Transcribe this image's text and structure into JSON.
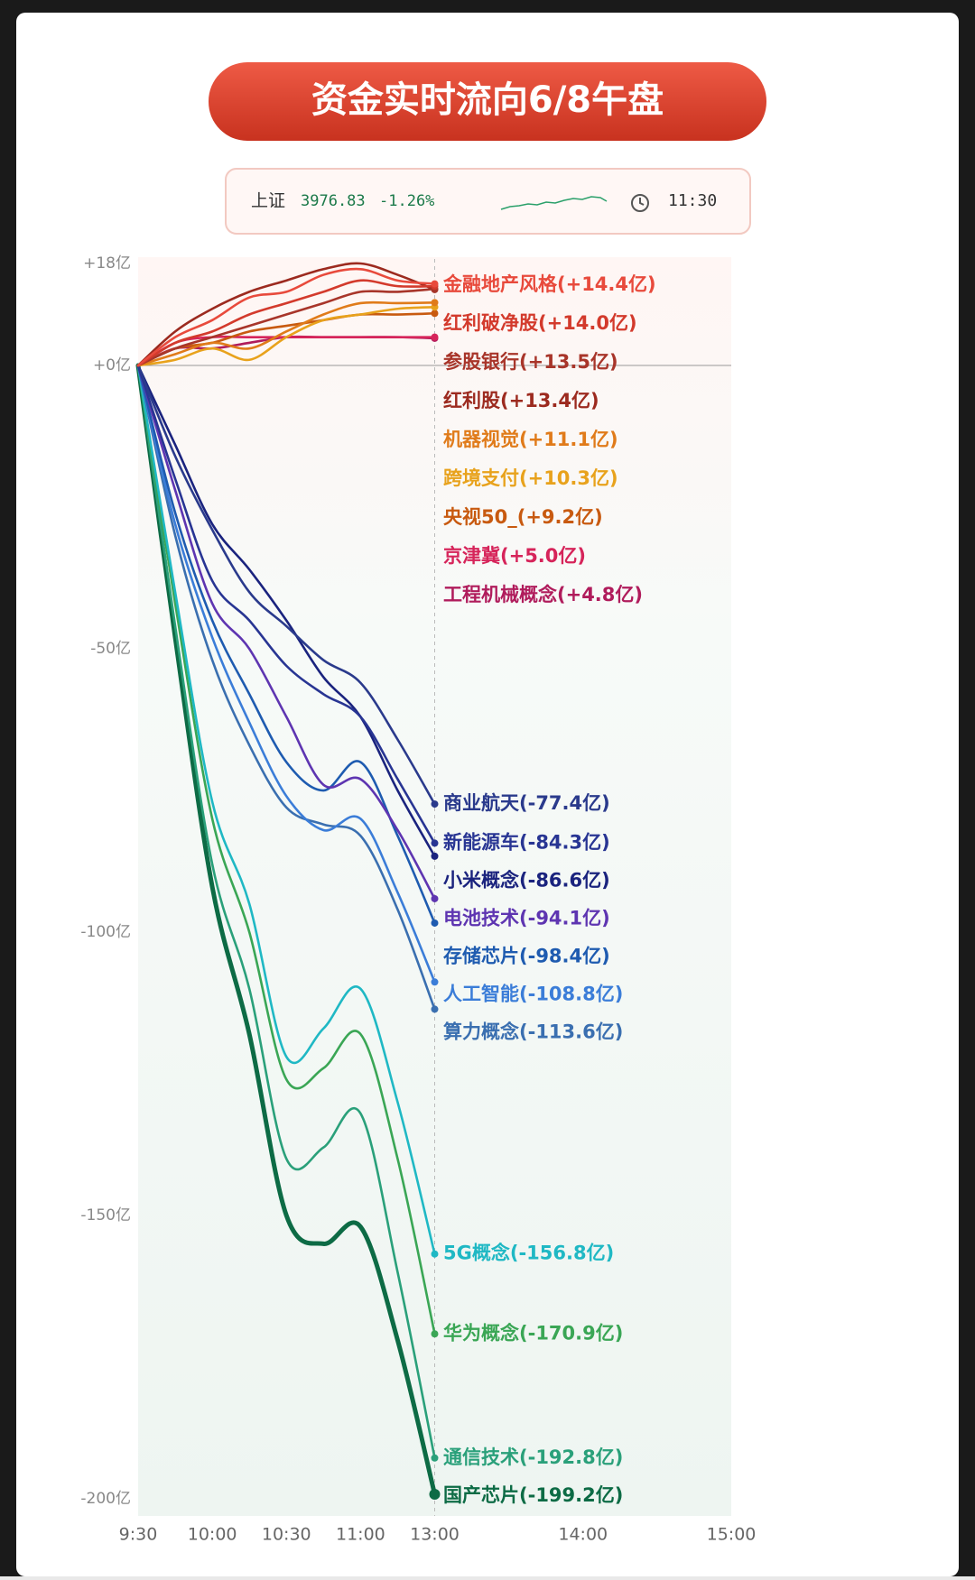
{
  "header": {
    "title": "资金实时流向6/8午盘",
    "index_name": "上证",
    "index_value": "3976.83",
    "index_change": "-1.26%",
    "time": "11:30"
  },
  "chart_data": {
    "type": "line",
    "x": [
      0,
      15,
      30,
      45,
      60,
      75,
      90,
      105,
      120
    ],
    "xlim": [
      0,
      240
    ],
    "xticks": [
      {
        "value": 0,
        "label": "9:30"
      },
      {
        "value": 30,
        "label": "10:00"
      },
      {
        "value": 60,
        "label": "10:30"
      },
      {
        "value": 90,
        "label": "11:00"
      },
      {
        "value": 120,
        "label": "13:00"
      },
      {
        "value": 180,
        "label": "14:00"
      },
      {
        "value": 240,
        "label": "15:00"
      }
    ],
    "ylim": [
      -200,
      18
    ],
    "yticks": [
      {
        "value": 18,
        "label": "+18亿"
      },
      {
        "value": 0,
        "label": "+0亿"
      },
      {
        "value": -50,
        "label": "-50亿"
      },
      {
        "value": -100,
        "label": "-100亿"
      },
      {
        "value": -150,
        "label": "-150亿"
      },
      {
        "value": -200,
        "label": "-200亿"
      }
    ],
    "zero_line": true,
    "now_x": 120,
    "series": [
      {
        "name": "金融地产风格(+14.4亿)",
        "color": "#e84a3c",
        "values": [
          0,
          5,
          8,
          12,
          13,
          16,
          17,
          15,
          14.4
        ]
      },
      {
        "name": "红利破净股(+14.0亿)",
        "color": "#d33a2c",
        "values": [
          0,
          4,
          6,
          9,
          11,
          13,
          15,
          14,
          14.0
        ]
      },
      {
        "name": "参股银行(+13.5亿)",
        "color": "#a8352a",
        "values": [
          0,
          3,
          5,
          7,
          9,
          11,
          13,
          13,
          13.5
        ]
      },
      {
        "name": "红利股(+13.4亿)",
        "color": "#9c2a1f",
        "values": [
          0,
          6,
          10,
          13,
          15,
          17,
          18,
          16,
          13.4
        ]
      },
      {
        "name": "机器视觉(+11.1亿)",
        "color": "#e07b1a",
        "values": [
          0,
          2,
          4,
          3,
          6,
          9,
          11,
          11,
          11.1
        ]
      },
      {
        "name": "跨境支付(+10.3亿)",
        "color": "#e8a21c",
        "values": [
          0,
          1,
          3,
          1,
          5,
          8,
          9,
          10,
          10.3
        ]
      },
      {
        "name": "央视50_(+9.2亿)",
        "color": "#c85a10",
        "values": [
          0,
          3,
          4,
          6,
          7,
          8,
          9,
          9,
          9.2
        ]
      },
      {
        "name": "京津冀(+5.0亿)",
        "color": "#d6245a",
        "values": [
          0,
          4,
          5,
          5,
          5,
          5,
          5,
          5,
          5.0
        ]
      },
      {
        "name": "工程机械概念(+4.8亿)",
        "color": "#b01c5c",
        "values": [
          0,
          3,
          3,
          4,
          5,
          5,
          5,
          5,
          4.8
        ]
      },
      {
        "name": "商业航天(-77.4亿)",
        "color": "#2a3a8c",
        "values": [
          0,
          -16,
          -29,
          -40,
          -46,
          -52,
          -56,
          -66,
          -77.4
        ]
      },
      {
        "name": "新能源车(-84.3亿)",
        "color": "#283593",
        "values": [
          0,
          -20,
          -38,
          -45,
          -53,
          -58,
          -62,
          -73,
          -84.3
        ]
      },
      {
        "name": "小米概念(-86.6亿)",
        "color": "#1a237e",
        "values": [
          0,
          -14,
          -28,
          -36,
          -45,
          -55,
          -62,
          -75,
          -86.6
        ]
      },
      {
        "name": "电池技术(-94.1亿)",
        "color": "#5e35b1",
        "values": [
          0,
          -22,
          -42,
          -50,
          -62,
          -74,
          -73,
          -82,
          -94.1
        ]
      },
      {
        "name": "存储芯片(-98.4亿)",
        "color": "#1e5bb0",
        "values": [
          0,
          -26,
          -45,
          -58,
          -70,
          -75,
          -70,
          -83,
          -98.4
        ]
      },
      {
        "name": "人工智能(-108.8亿)",
        "color": "#3b7dd8",
        "values": [
          0,
          -28,
          -48,
          -63,
          -76,
          -82,
          -80,
          -93,
          -108.8
        ]
      },
      {
        "name": "算力概念(-113.6亿)",
        "color": "#3a6fb0",
        "values": [
          0,
          -30,
          -52,
          -67,
          -78,
          -81,
          -83,
          -96,
          -113.6
        ]
      },
      {
        "name": "5G概念(-156.8亿)",
        "color": "#1fb8c4",
        "values": [
          0,
          -40,
          -77,
          -95,
          -122,
          -117,
          -110,
          -130,
          -156.8
        ]
      },
      {
        "name": "华为概念(-170.9亿)",
        "color": "#3aa655",
        "values": [
          0,
          -42,
          -80,
          -100,
          -126,
          -124,
          -118,
          -140,
          -170.9
        ]
      },
      {
        "name": "通信技术(-192.8亿)",
        "color": "#2aa07a",
        "values": [
          0,
          -46,
          -88,
          -110,
          -140,
          -138,
          -132,
          -160,
          -192.8
        ]
      },
      {
        "name": "国产芯片(-199.2亿)",
        "color": "#0d6b45",
        "values": [
          0,
          -48,
          -92,
          -118,
          -150,
          -155,
          -152,
          -172,
          -199.2
        ]
      }
    ]
  }
}
